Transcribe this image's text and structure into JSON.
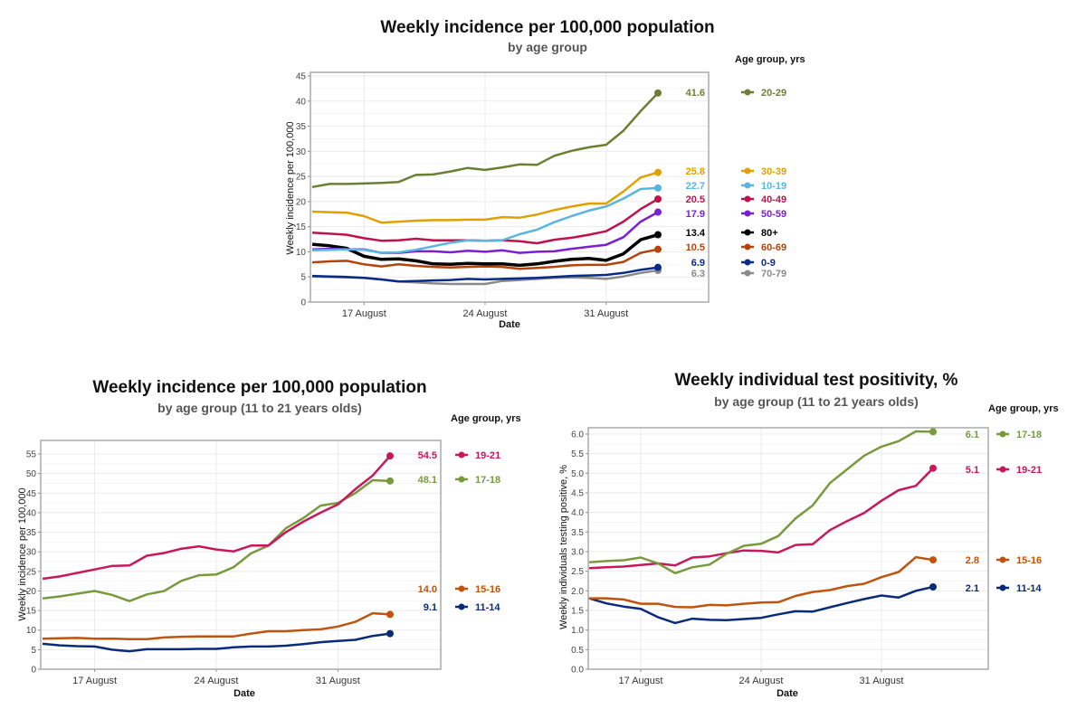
{
  "chart_data": [
    {
      "type": "line",
      "title": "Weekly incidence per 100,000 population",
      "subtitle": "by age group",
      "xlabel": "Date",
      "ylabel": "Weekly incidence per 100,000",
      "legend_title": "Age group, yrs",
      "legend_placement": "right",
      "grid": true,
      "ylim": [
        0,
        45
      ],
      "yticks": [
        0,
        5,
        10,
        15,
        20,
        25,
        30,
        35,
        40,
        45
      ],
      "xticks": [
        {
          "label": "17 August",
          "x": "Aug 17"
        },
        {
          "label": "24 August",
          "x": "Aug 24"
        },
        {
          "label": "31 August",
          "x": "Aug 31"
        }
      ],
      "x": [
        "Aug 14",
        "Aug 15",
        "Aug 16",
        "Aug 17",
        "Aug 18",
        "Aug 19",
        "Aug 20",
        "Aug 21",
        "Aug 22",
        "Aug 23",
        "Aug 24",
        "Aug 25",
        "Aug 26",
        "Aug 27",
        "Aug 28",
        "Aug 29",
        "Aug 30",
        "Aug 31",
        "Sep 1",
        "Sep 2",
        "Sep 3"
      ],
      "series": [
        {
          "name": "20-29",
          "color": "#6b7f32",
          "end_label": "41.6",
          "values": [
            22.9,
            23.5,
            23.5,
            23.6,
            23.7,
            23.9,
            25.3,
            25.4,
            26,
            26.7,
            26.3,
            26.8,
            27.4,
            27.3,
            29.1,
            30.1,
            30.8,
            31.3,
            34.1,
            38,
            41.6
          ]
        },
        {
          "name": "30-39",
          "color": "#e0a100",
          "end_label": "25.8",
          "values": [
            18,
            17.9,
            17.8,
            17.1,
            15.8,
            16,
            16.2,
            16.3,
            16.3,
            16.4,
            16.4,
            16.9,
            16.8,
            17.4,
            18.3,
            19,
            19.6,
            19.6,
            22,
            24.8,
            25.8
          ]
        },
        {
          "name": "10-19",
          "color": "#5ab4e0",
          "end_label": "22.7",
          "values": [
            10.3,
            10.4,
            10.5,
            10.4,
            9.8,
            9.9,
            10.4,
            11.1,
            11.8,
            12.3,
            12.2,
            12.3,
            13.5,
            14.4,
            15.9,
            17.1,
            18.2,
            19,
            20.6,
            22.5,
            22.7
          ]
        },
        {
          "name": "40-49",
          "color": "#c0124a",
          "end_label": "20.5",
          "values": [
            13.8,
            13.6,
            13.4,
            12.7,
            12.2,
            12.3,
            12.6,
            12.3,
            12.3,
            12.3,
            12.2,
            12.3,
            12.1,
            11.7,
            12.4,
            12.8,
            13.4,
            14.1,
            16,
            18.5,
            20.5
          ]
        },
        {
          "name": "50-59",
          "color": "#7b1fd0",
          "end_label": "17.9",
          "values": [
            10.5,
            10.6,
            10.5,
            10.5,
            9.8,
            9.8,
            10.1,
            10.1,
            9.9,
            10.2,
            10,
            10.3,
            9.8,
            10,
            10.1,
            10.6,
            11,
            11.4,
            12.9,
            16,
            17.9
          ]
        },
        {
          "name": "80+",
          "color": "#000000",
          "end_label": "13.4",
          "values": [
            11.5,
            11.2,
            10.7,
            9.1,
            8.5,
            8.6,
            8.2,
            7.6,
            7.5,
            7.7,
            7.6,
            7.6,
            7.3,
            7.6,
            8.1,
            8.5,
            8.7,
            8.3,
            9.6,
            12.4,
            13.4
          ]
        },
        {
          "name": "60-69",
          "color": "#b5440b",
          "end_label": "10.5",
          "values": [
            7.9,
            8.1,
            8.2,
            7.5,
            7.1,
            7.5,
            7.2,
            7,
            6.9,
            7,
            7.1,
            7,
            6.6,
            6.8,
            7,
            7.3,
            7.4,
            7.4,
            8,
            9.8,
            10.5
          ]
        },
        {
          "name": "0-9",
          "color": "#0a2a8a",
          "end_label": "6.9",
          "values": [
            5.2,
            5.1,
            5,
            4.8,
            4.5,
            4.1,
            4.2,
            4.3,
            4.4,
            4.6,
            4.5,
            4.6,
            4.7,
            4.8,
            5,
            5.2,
            5.3,
            5.4,
            5.8,
            6.4,
            6.9
          ]
        },
        {
          "name": "70-79",
          "color": "#8a8a8a",
          "end_label": "6.3",
          "values": [
            5.1,
            5,
            4.9,
            4.8,
            4.5,
            4.1,
            3.9,
            3.7,
            3.6,
            3.6,
            3.6,
            4.2,
            4.4,
            4.6,
            4.8,
            4.9,
            4.8,
            4.6,
            5.1,
            5.8,
            6.3
          ]
        }
      ]
    },
    {
      "type": "line",
      "title": "Weekly incidence per 100,000 population",
      "subtitle": "by age group (11 to 21 years olds)",
      "xlabel": "Date",
      "ylabel": "Weekly incidence per 100,000",
      "legend_title": "Age group, yrs",
      "legend_placement": "right",
      "grid": true,
      "ylim": [
        0,
        57
      ],
      "yticks": [
        0,
        5,
        10,
        15,
        20,
        25,
        30,
        35,
        40,
        45,
        50,
        55
      ],
      "xticks": [
        {
          "label": "17 August",
          "x": "Aug 17"
        },
        {
          "label": "24 August",
          "x": "Aug 24"
        },
        {
          "label": "31 August",
          "x": "Aug 31"
        }
      ],
      "x": [
        "Aug 14",
        "Aug 15",
        "Aug 16",
        "Aug 17",
        "Aug 18",
        "Aug 19",
        "Aug 20",
        "Aug 21",
        "Aug 22",
        "Aug 23",
        "Aug 24",
        "Aug 25",
        "Aug 26",
        "Aug 27",
        "Aug 28",
        "Aug 29",
        "Aug 30",
        "Aug 31",
        "Sep 1",
        "Sep 2",
        "Sep 3"
      ],
      "series": [
        {
          "name": "19-21",
          "color": "#c8175a",
          "end_label": "54.5",
          "values": [
            23.1,
            23.7,
            24.6,
            25.5,
            26.4,
            26.5,
            29,
            29.7,
            30.8,
            31.4,
            30.6,
            30.1,
            31.6,
            31.6,
            35,
            37.7,
            40,
            42.1,
            46,
            49.5,
            54.5
          ]
        },
        {
          "name": "17-18",
          "color": "#789a3c",
          "end_label": "48.1",
          "values": [
            18.1,
            18.6,
            19.3,
            20,
            19,
            17.4,
            19.1,
            20,
            22.6,
            24,
            24.2,
            26.1,
            29.6,
            31.6,
            36,
            38.6,
            41.8,
            42.5,
            45,
            48.3,
            48.1
          ]
        },
        {
          "name": "15-16",
          "color": "#c0540e",
          "end_label": "14.0",
          "values": [
            7.8,
            7.9,
            8,
            7.8,
            7.8,
            7.7,
            7.7,
            8.1,
            8.3,
            8.4,
            8.4,
            8.4,
            9.1,
            9.7,
            9.7,
            10,
            10.2,
            10.9,
            12.1,
            14.3,
            14
          ]
        },
        {
          "name": "11-14",
          "color": "#0a2a7a",
          "end_label": "9.1",
          "values": [
            6.5,
            6.1,
            5.9,
            5.8,
            5,
            4.6,
            5.1,
            5.1,
            5.1,
            5.2,
            5.2,
            5.6,
            5.8,
            5.8,
            6,
            6.4,
            6.9,
            7.2,
            7.5,
            8.5,
            9.1
          ]
        }
      ]
    },
    {
      "type": "line",
      "title": "Weekly individual test positivity, %",
      "subtitle": "by age group (11 to 21 years olds)",
      "xlabel": "Date",
      "ylabel": "Weekly individuals testing positive, %",
      "legend_title": "Age group, yrs",
      "legend_placement": "right",
      "grid": true,
      "ylim": [
        0,
        6.1
      ],
      "yticks": [
        "0.0",
        "0.5",
        "1.0",
        "1.5",
        "2.0",
        "2.5",
        "3.0",
        "3.5",
        "4.0",
        "4.5",
        "5.0",
        "5.5",
        "6.0"
      ],
      "xticks": [
        {
          "label": "17 August",
          "x": "Aug 17"
        },
        {
          "label": "24 August",
          "x": "Aug 24"
        },
        {
          "label": "31 August",
          "x": "Aug 31"
        }
      ],
      "x": [
        "Aug 14",
        "Aug 15",
        "Aug 16",
        "Aug 17",
        "Aug 18",
        "Aug 19",
        "Aug 20",
        "Aug 21",
        "Aug 22",
        "Aug 23",
        "Aug 24",
        "Aug 25",
        "Aug 26",
        "Aug 27",
        "Aug 28",
        "Aug 29",
        "Aug 30",
        "Aug 31",
        "Sep 1",
        "Sep 2",
        "Sep 3"
      ],
      "series": [
        {
          "name": "17-18",
          "color": "#789a3c",
          "end_label": "6.1",
          "values": [
            2.73,
            2.76,
            2.78,
            2.85,
            2.7,
            2.45,
            2.6,
            2.67,
            2.95,
            3.15,
            3.2,
            3.4,
            3.85,
            4.18,
            4.75,
            5.1,
            5.45,
            5.68,
            5.82,
            6.07,
            6.06
          ]
        },
        {
          "name": "19-21",
          "color": "#c8175a",
          "end_label": "5.1",
          "values": [
            2.58,
            2.6,
            2.62,
            2.66,
            2.7,
            2.65,
            2.85,
            2.88,
            2.96,
            3.03,
            3.02,
            2.98,
            3.17,
            3.19,
            3.55,
            3.78,
            3.99,
            4.3,
            4.57,
            4.68,
            5.13
          ]
        },
        {
          "name": "15-16",
          "color": "#c0540e",
          "end_label": "2.8",
          "values": [
            1.81,
            1.81,
            1.78,
            1.67,
            1.67,
            1.59,
            1.58,
            1.64,
            1.63,
            1.67,
            1.7,
            1.71,
            1.87,
            1.97,
            2.02,
            2.12,
            2.18,
            2.35,
            2.48,
            2.86,
            2.79
          ]
        },
        {
          "name": "11-14",
          "color": "#0a2a7a",
          "end_label": "2.1",
          "values": [
            1.81,
            1.68,
            1.6,
            1.54,
            1.33,
            1.18,
            1.29,
            1.26,
            1.25,
            1.28,
            1.31,
            1.4,
            1.48,
            1.47,
            1.58,
            1.69,
            1.79,
            1.88,
            1.83,
            2,
            2.1
          ]
        }
      ]
    }
  ]
}
